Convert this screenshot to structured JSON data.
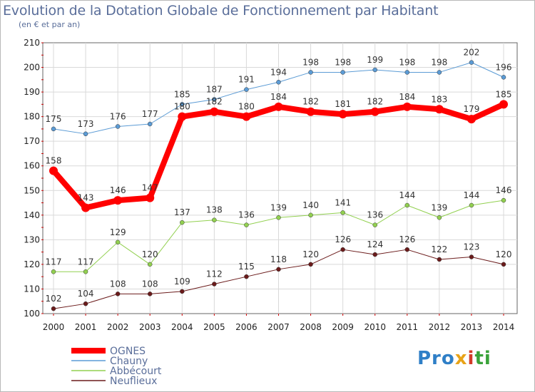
{
  "header": {
    "title": "Evolution de la Dotation Globale de Fonctionnement par Habitant",
    "subtitle": "(en € et par an)"
  },
  "logo": {
    "text": "Proxiti",
    "p1": "Pro",
    "p2": "x",
    "p3": "i",
    "p4": "ti"
  },
  "chart_data": {
    "type": "line",
    "title": "Evolution de la Dotation Globale de Fonctionnement par Habitant",
    "ylabel": "(en € et par an)",
    "xlabel": "",
    "x": [
      "2000",
      "2001",
      "2002",
      "2003",
      "2004",
      "2005",
      "2006",
      "2007",
      "2008",
      "2009",
      "2010",
      "2011",
      "2012",
      "2013",
      "2014"
    ],
    "ylim": [
      100,
      210
    ],
    "yticks": [
      100,
      110,
      120,
      130,
      140,
      150,
      160,
      170,
      180,
      190,
      200,
      210
    ],
    "grid": true,
    "legend": "bottom-left",
    "series": [
      {
        "name": "Chauny",
        "color": "#5b9bd5",
        "width": 1,
        "values": [
          175,
          173,
          176,
          177,
          185,
          187,
          191,
          194,
          198,
          198,
          199,
          198,
          198,
          202,
          196
        ]
      },
      {
        "name": "Abbécourt",
        "color": "#92d050",
        "width": 1,
        "values": [
          117,
          117,
          129,
          120,
          137,
          138,
          136,
          139,
          140,
          141,
          136,
          144,
          139,
          144,
          146
        ]
      },
      {
        "name": "Neuflieux",
        "color": "#6b1b1b",
        "width": 1,
        "values": [
          102,
          104,
          108,
          108,
          109,
          112,
          115,
          118,
          120,
          126,
          124,
          126,
          122,
          123,
          120
        ]
      },
      {
        "name": "OGNES",
        "color": "#ff0000",
        "width": 8,
        "values": [
          158,
          143,
          146,
          147,
          180,
          182,
          180,
          184,
          182,
          181,
          182,
          184,
          183,
          179,
          185
        ]
      }
    ],
    "legend_order": [
      "OGNES",
      "Chauny",
      "Abbécourt",
      "Neuflieux"
    ]
  }
}
